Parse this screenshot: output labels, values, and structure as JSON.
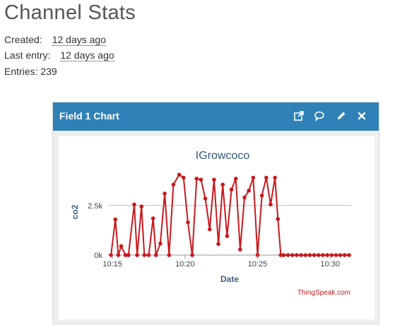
{
  "page": {
    "title": "Channel Stats",
    "created_label": "Created:",
    "created_value": "12 days ago",
    "last_entry_label": "Last entry:",
    "last_entry_value": "12 days ago",
    "entries_label": "Entries: 239"
  },
  "panel": {
    "title": "Field 1 Chart",
    "header_color": "#2f81b7",
    "icons": [
      "external-link-icon",
      "comment-icon",
      "pencil-icon",
      "close-icon"
    ]
  },
  "chart_data": {
    "type": "line",
    "title": "IGrowcoco",
    "xlabel": "Date",
    "ylabel": "co2",
    "credit": "ThingSpeak.com",
    "color": "#c8191e",
    "x_ticks": [
      "10:15",
      "10:20",
      "10:25",
      "10:30"
    ],
    "y_ticks": [
      "0k",
      "2.5k"
    ],
    "ylim": [
      0,
      4200
    ],
    "x_unit": "minutes after 10:00",
    "xlim": [
      14.7,
      31.5
    ],
    "x": [
      14.9,
      15.2,
      15.4,
      15.6,
      15.9,
      16.1,
      16.5,
      16.7,
      17.0,
      17.2,
      17.5,
      17.8,
      18.0,
      18.3,
      18.6,
      18.9,
      19.2,
      19.6,
      19.9,
      20.2,
      20.5,
      20.8,
      21.1,
      21.4,
      21.7,
      22.0,
      22.3,
      22.6,
      22.9,
      23.2,
      23.5,
      23.8,
      24.1,
      24.4,
      24.7,
      25.0,
      25.3,
      25.6,
      25.9,
      26.2,
      26.4,
      26.6,
      26.8,
      27.1,
      27.4,
      27.7,
      28.0,
      28.3,
      28.6,
      28.9,
      29.2,
      29.5,
      29.8,
      30.1,
      30.4,
      30.7,
      31.0,
      31.3
    ],
    "values": [
      0,
      1800,
      0,
      450,
      0,
      0,
      2550,
      0,
      2450,
      0,
      0,
      1850,
      0,
      580,
      3100,
      0,
      3550,
      4050,
      3900,
      1650,
      0,
      3850,
      3800,
      2850,
      1300,
      3800,
      560,
      3550,
      960,
      3300,
      3850,
      280,
      2900,
      3250,
      3900,
      0,
      3000,
      3900,
      2550,
      3900,
      1820,
      0,
      0,
      0,
      0,
      0,
      0,
      0,
      0,
      0,
      0,
      0,
      0,
      0,
      0,
      0,
      0,
      0
    ]
  }
}
